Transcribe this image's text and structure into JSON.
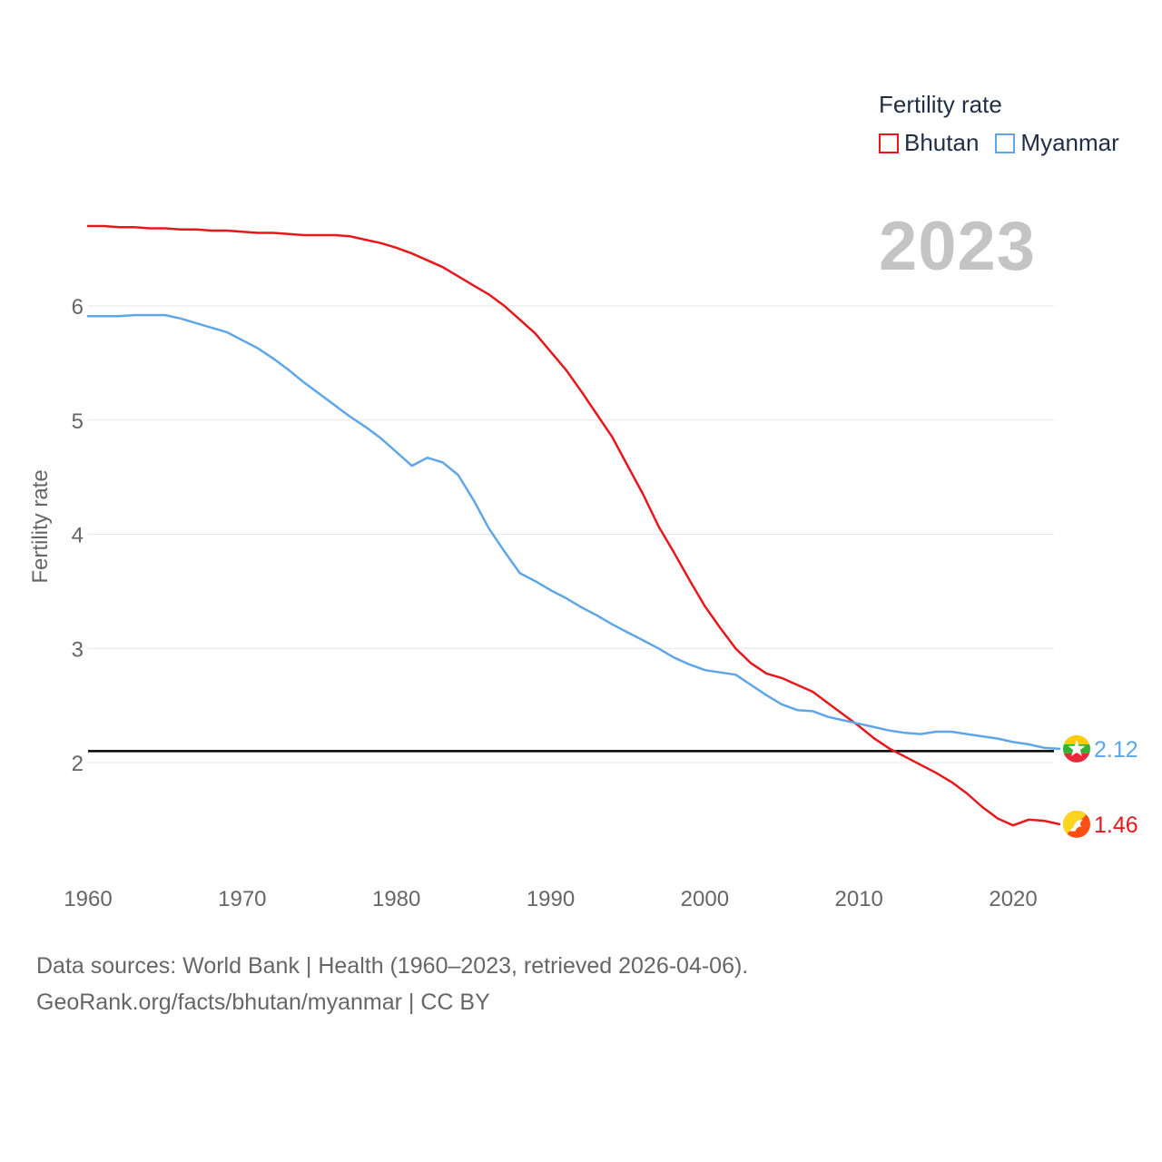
{
  "legend": {
    "title": "Fertility rate",
    "items": [
      {
        "label": "Bhutan",
        "color": "#e8171b"
      },
      {
        "label": "Myanmar",
        "color": "#5ea6e8"
      }
    ]
  },
  "year_label": "2023",
  "source": {
    "line1": "Data sources: World Bank | Health (1960–2023, retrieved 2026-04-06).",
    "line2": "GeoRank.org/facts/bhutan/myanmar | CC BY"
  },
  "chart_data": {
    "type": "line",
    "title": "",
    "xlabel": "",
    "ylabel": "Fertility rate",
    "xlim": [
      1960,
      2023
    ],
    "ylim": [
      1.0,
      7.0
    ],
    "x_ticks": [
      1960,
      1970,
      1980,
      1990,
      2000,
      2010,
      2020
    ],
    "y_ticks": [
      2,
      3,
      4,
      5,
      6
    ],
    "grid": true,
    "reference_line": {
      "y": 2.1,
      "color": "#000000"
    },
    "x": [
      1960,
      1961,
      1962,
      1963,
      1964,
      1965,
      1966,
      1967,
      1968,
      1969,
      1970,
      1971,
      1972,
      1973,
      1974,
      1975,
      1976,
      1977,
      1978,
      1979,
      1980,
      1981,
      1982,
      1983,
      1984,
      1985,
      1986,
      1987,
      1988,
      1989,
      1990,
      1991,
      1992,
      1993,
      1994,
      1995,
      1996,
      1997,
      1998,
      1999,
      2000,
      2001,
      2002,
      2003,
      2004,
      2005,
      2006,
      2007,
      2008,
      2009,
      2010,
      2011,
      2012,
      2013,
      2014,
      2015,
      2016,
      2017,
      2018,
      2019,
      2020,
      2021,
      2022,
      2023
    ],
    "series": [
      {
        "name": "Bhutan",
        "color": "#e8171b",
        "end_label": "1.46",
        "values": [
          6.7,
          6.7,
          6.69,
          6.69,
          6.68,
          6.68,
          6.67,
          6.67,
          6.66,
          6.66,
          6.65,
          6.64,
          6.64,
          6.63,
          6.62,
          6.62,
          6.62,
          6.61,
          6.58,
          6.55,
          6.51,
          6.46,
          6.4,
          6.34,
          6.26,
          6.18,
          6.1,
          6.0,
          5.88,
          5.76,
          5.6,
          5.44,
          5.25,
          5.05,
          4.85,
          4.6,
          4.35,
          4.07,
          3.84,
          3.6,
          3.37,
          3.18,
          3.0,
          2.87,
          2.78,
          2.74,
          2.68,
          2.62,
          2.52,
          2.42,
          2.32,
          2.21,
          2.12,
          2.05,
          1.98,
          1.91,
          1.83,
          1.73,
          1.61,
          1.51,
          1.45,
          1.5,
          1.49,
          1.46
        ]
      },
      {
        "name": "Myanmar",
        "color": "#5ea6e8",
        "end_label": "2.12",
        "values": [
          5.91,
          5.91,
          5.91,
          5.92,
          5.92,
          5.92,
          5.89,
          5.85,
          5.81,
          5.77,
          5.7,
          5.63,
          5.54,
          5.44,
          5.33,
          5.23,
          5.13,
          5.03,
          4.94,
          4.84,
          4.72,
          4.6,
          4.67,
          4.63,
          4.52,
          4.3,
          4.05,
          3.85,
          3.66,
          3.59,
          3.51,
          3.44,
          3.36,
          3.29,
          3.21,
          3.14,
          3.07,
          3.0,
          2.92,
          2.86,
          2.81,
          2.79,
          2.77,
          2.68,
          2.59,
          2.51,
          2.46,
          2.45,
          2.4,
          2.37,
          2.34,
          2.31,
          2.28,
          2.26,
          2.25,
          2.27,
          2.27,
          2.25,
          2.23,
          2.21,
          2.18,
          2.16,
          2.13,
          2.12
        ]
      }
    ]
  }
}
